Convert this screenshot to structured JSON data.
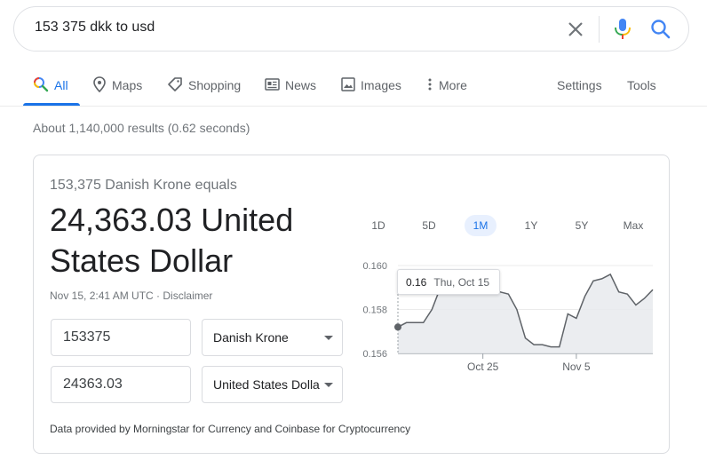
{
  "search": {
    "query": "153 375 dkk to usd"
  },
  "tabs": [
    {
      "label": "All",
      "icon": "search-icon"
    },
    {
      "label": "Maps",
      "icon": "map-pin-icon"
    },
    {
      "label": "Shopping",
      "icon": "tag-icon"
    },
    {
      "label": "News",
      "icon": "news-icon"
    },
    {
      "label": "Images",
      "icon": "image-icon"
    },
    {
      "label": "More",
      "icon": "more-vert-icon"
    }
  ],
  "tools": {
    "settings": "Settings",
    "tools": "Tools"
  },
  "stats": "About 1,140,000 results (0.62 seconds)",
  "converter": {
    "equals_text": "153,375 Danish Krone equals",
    "result_text": "24,363.03 United States Dollar",
    "timestamp": "Nov 15, 2:41 AM UTC",
    "separator": " · ",
    "disclaimer": "Disclaimer",
    "from_amount": "153375",
    "from_currency": "Danish Krone",
    "to_amount": "24363.03",
    "to_currency": "United States Dollar",
    "footnote": "Data provided by Morningstar for Currency and Coinbase for Cryptocurrency"
  },
  "ranges": [
    "1D",
    "5D",
    "1M",
    "1Y",
    "5Y",
    "Max"
  ],
  "active_range": "1M",
  "tooltip": {
    "value": "0.16",
    "date": "Thu, Oct 15"
  },
  "colors": {
    "accent": "#1a73e8",
    "line": "#5f6368",
    "area": "#e8eaed"
  },
  "chart_data": {
    "type": "area",
    "x": [
      "Oct 15",
      "Oct 16",
      "Oct 17",
      "Oct 18",
      "Oct 19",
      "Oct 20",
      "Oct 21",
      "Oct 22",
      "Oct 23",
      "Oct 24",
      "Oct 25",
      "Oct 26",
      "Oct 27",
      "Oct 28",
      "Oct 29",
      "Oct 30",
      "Oct 31",
      "Nov 1",
      "Nov 2",
      "Nov 3",
      "Nov 4",
      "Nov 5",
      "Nov 6",
      "Nov 7",
      "Nov 8",
      "Nov 9",
      "Nov 10",
      "Nov 11",
      "Nov 12",
      "Nov 13",
      "Nov 14"
    ],
    "values": [
      0.1572,
      0.1574,
      0.1574,
      0.1574,
      0.158,
      0.159,
      0.1593,
      0.1595,
      0.1594,
      0.1594,
      0.1593,
      0.159,
      0.1588,
      0.1587,
      0.158,
      0.1567,
      0.1564,
      0.1564,
      0.1563,
      0.1563,
      0.1578,
      0.1576,
      0.1586,
      0.1593,
      0.1594,
      0.1596,
      0.1588,
      0.1587,
      0.1582,
      0.1585,
      0.1589
    ],
    "yticks": [
      0.156,
      0.158,
      0.16
    ],
    "xticks": [
      "Oct 25",
      "Nov 5"
    ],
    "ylim": [
      0.156,
      0.16
    ]
  }
}
